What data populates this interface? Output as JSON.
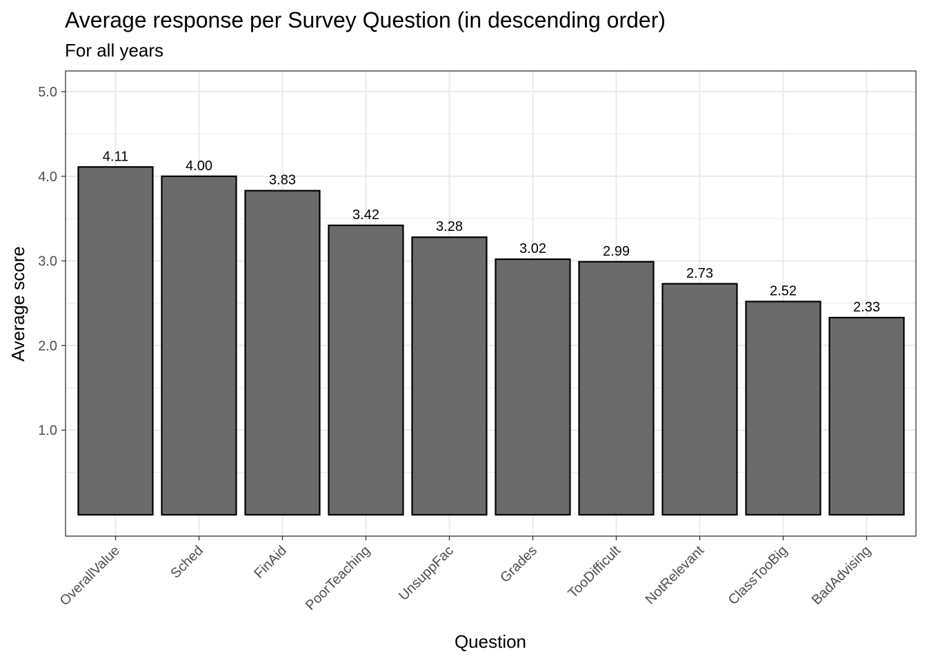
{
  "chart_data": {
    "type": "bar",
    "title": "Average response per Survey Question (in descending order)",
    "subtitle": "For all years",
    "xlabel": "Question",
    "ylabel": "Average score",
    "categories": [
      "OverallValue",
      "Sched",
      "FinAid",
      "PoorTeaching",
      "UnsuppFac",
      "Grades",
      "TooDifficult",
      "NotRelevant",
      "ClassTooBig",
      "BadAdvising"
    ],
    "values": [
      4.11,
      4.0,
      3.83,
      3.42,
      3.28,
      3.02,
      2.99,
      2.73,
      2.52,
      2.33
    ],
    "data_labels": [
      "4.11",
      "4.00",
      "3.83",
      "3.42",
      "3.28",
      "3.02",
      "2.99",
      "2.73",
      "2.52",
      "2.33"
    ],
    "y_ticks": [
      1.0,
      2.0,
      3.0,
      4.0,
      5.0
    ],
    "y_tick_labels": [
      "1.0",
      "2.0",
      "3.0",
      "4.0",
      "5.0"
    ],
    "ylim": [
      0,
      5
    ],
    "grid": true,
    "bar_fill": "#6b6b6b",
    "bar_stroke": "#000000",
    "grid_color": "#ebebeb"
  }
}
